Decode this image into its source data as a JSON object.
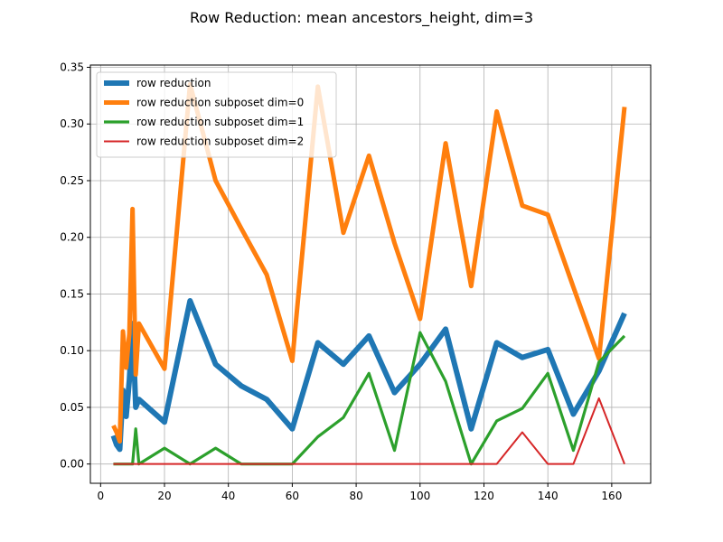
{
  "chart_data": {
    "type": "line",
    "title": "Row Reduction: mean ancestors_height, dim=3",
    "xlabel": "",
    "ylabel": "",
    "xlim": [
      -3.2,
      172.2
    ],
    "ylim": [
      -0.017,
      0.352
    ],
    "xticks": [
      0,
      20,
      40,
      60,
      80,
      100,
      120,
      140,
      160
    ],
    "xtick_labels": [
      "0",
      "20",
      "40",
      "60",
      "80",
      "100",
      "120",
      "140",
      "160"
    ],
    "yticks": [
      0.0,
      0.05,
      0.1,
      0.15,
      0.2,
      0.25,
      0.3,
      0.35
    ],
    "ytick_labels": [
      "0.00",
      "0.05",
      "0.10",
      "0.15",
      "0.20",
      "0.25",
      "0.30",
      "0.35"
    ],
    "grid": true,
    "legend_position": "top-left",
    "series": [
      {
        "name": "row reduction",
        "color": "#1f77b4",
        "x": [
          4,
          5,
          6,
          7,
          8,
          9,
          10,
          11,
          12,
          20,
          28,
          36,
          44,
          52,
          60,
          68,
          76,
          84,
          92,
          100,
          108,
          116,
          124,
          132,
          140,
          148,
          156,
          164
        ],
        "y": [
          0.025,
          0.017,
          0.013,
          0.065,
          0.042,
          0.074,
          0.124,
          0.05,
          0.057,
          0.037,
          0.144,
          0.088,
          0.069,
          0.057,
          0.031,
          0.107,
          0.088,
          0.113,
          0.063,
          0.088,
          0.119,
          0.031,
          0.107,
          0.094,
          0.101,
          0.044,
          0.082,
          0.133
        ]
      },
      {
        "name": "row reduction subposet dim=0",
        "color": "#ff7f0e",
        "x": [
          4,
          5,
          6,
          7,
          8,
          9,
          10,
          11,
          12,
          20,
          28,
          36,
          44,
          52,
          60,
          68,
          76,
          84,
          92,
          100,
          108,
          116,
          124,
          132,
          140,
          148,
          156,
          164
        ],
        "y": [
          0.034,
          0.028,
          0.02,
          0.117,
          0.085,
          0.115,
          0.225,
          0.079,
          0.124,
          0.084,
          0.335,
          0.25,
          0.208,
          0.167,
          0.091,
          0.333,
          0.204,
          0.272,
          0.195,
          0.128,
          0.283,
          0.157,
          0.311,
          0.228,
          0.22,
          0.156,
          0.093,
          0.315
        ]
      },
      {
        "name": "row reduction subposet dim=1",
        "color": "#2ca02c",
        "x": [
          4,
          6,
          8,
          10,
          11,
          12,
          20,
          28,
          36,
          44,
          52,
          60,
          68,
          76,
          84,
          92,
          100,
          108,
          116,
          124,
          132,
          140,
          148,
          156,
          164
        ],
        "y": [
          0.0,
          0.0,
          0.0,
          0.0,
          0.031,
          0.0,
          0.014,
          0.0,
          0.014,
          0.0,
          0.0,
          0.0,
          0.024,
          0.041,
          0.08,
          0.012,
          0.116,
          0.073,
          0.0,
          0.038,
          0.049,
          0.08,
          0.012,
          0.09,
          0.113
        ]
      },
      {
        "name": "row reduction subposet dim=2",
        "color": "#d62728",
        "x": [
          4,
          12,
          20,
          28,
          36,
          44,
          52,
          60,
          68,
          76,
          84,
          92,
          100,
          108,
          116,
          124,
          132,
          140,
          148,
          156,
          164
        ],
        "y": [
          0.0,
          0.0,
          0.0,
          0.0,
          0.0,
          0.0,
          0.0,
          0.0,
          0.0,
          0.0,
          0.0,
          0.0,
          0.0,
          0.0,
          0.0,
          0.0,
          0.028,
          0.0,
          0.0,
          0.058,
          0.0
        ]
      }
    ]
  }
}
